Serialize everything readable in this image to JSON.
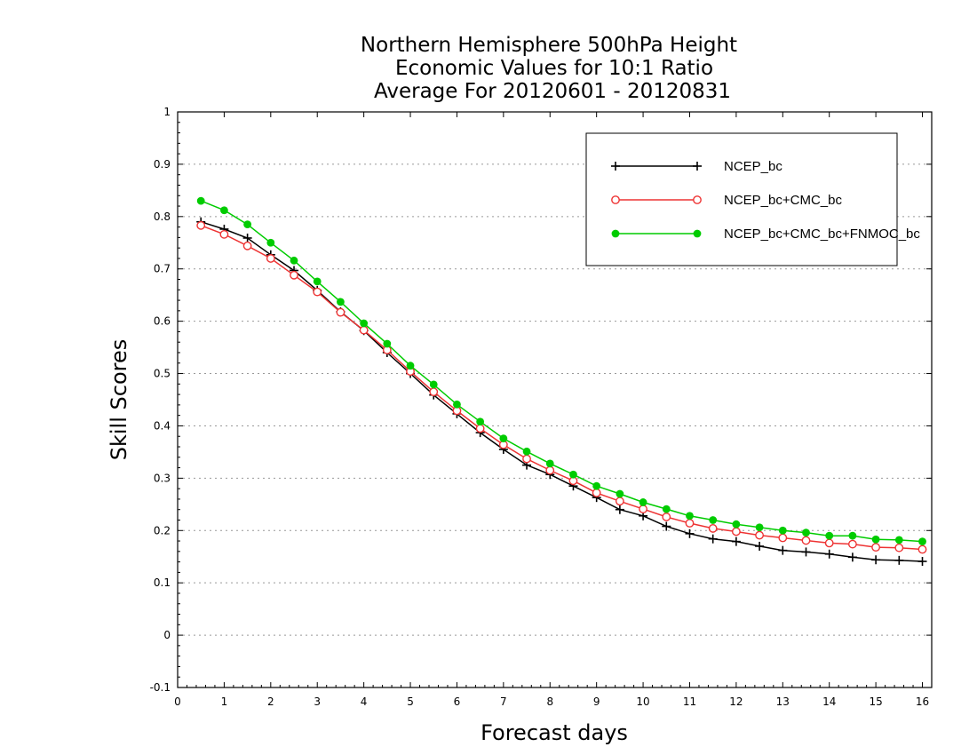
{
  "chart_data": {
    "type": "line",
    "title": [
      "Northern Hemisphere 500hPa Height",
      "Economic Values for 10:1 Ratio",
      "Average For 20120601 - 20120831"
    ],
    "xlabel": "Forecast days",
    "ylabel": "Skill Scores",
    "xlim": [
      0,
      16.2
    ],
    "ylim": [
      -0.1,
      1
    ],
    "xticks": [
      0,
      1,
      2,
      3,
      4,
      5,
      6,
      7,
      8,
      9,
      10,
      11,
      12,
      13,
      14,
      15,
      16
    ],
    "yticks": [
      -0.1,
      0,
      0.1,
      0.2,
      0.3,
      0.4,
      0.5,
      0.6,
      0.7,
      0.8,
      0.9,
      1
    ],
    "ytick_labels": [
      "-0.1",
      "0",
      "0.1",
      "0.2",
      "0.3",
      "0.4",
      "0.5",
      "0.6",
      "0.7",
      "0.8",
      "0.9",
      "1"
    ],
    "grid": "horizontal dotted",
    "legend_position": "top-right",
    "x": [
      0.5,
      1,
      1.5,
      2,
      2.5,
      3,
      3.5,
      4,
      4.5,
      5,
      5.5,
      6,
      6.5,
      7,
      7.5,
      8,
      8.5,
      9,
      9.5,
      10,
      10.5,
      11,
      11.5,
      12,
      12.5,
      13,
      13.5,
      14,
      14.5,
      15,
      15.5,
      16
    ],
    "series": [
      {
        "name": "NCEP_bc",
        "color": "#000000",
        "marker": "plus",
        "values": [
          0.79,
          0.776,
          0.759,
          0.727,
          0.697,
          0.659,
          0.618,
          0.582,
          0.54,
          0.5,
          0.459,
          0.423,
          0.387,
          0.355,
          0.325,
          0.307,
          0.285,
          0.263,
          0.24,
          0.228,
          0.208,
          0.194,
          0.184,
          0.179,
          0.17,
          0.162,
          0.159,
          0.155,
          0.149,
          0.144,
          0.143,
          0.141
        ]
      },
      {
        "name": "NCEP_bc+CMC_bc",
        "color": "#ee3333",
        "marker": "open-circle",
        "values": [
          0.783,
          0.766,
          0.744,
          0.72,
          0.688,
          0.656,
          0.617,
          0.583,
          0.545,
          0.504,
          0.465,
          0.429,
          0.395,
          0.364,
          0.337,
          0.315,
          0.295,
          0.272,
          0.256,
          0.241,
          0.226,
          0.214,
          0.204,
          0.198,
          0.191,
          0.186,
          0.181,
          0.176,
          0.174,
          0.168,
          0.167,
          0.164
        ]
      },
      {
        "name": "NCEP_bc+CMC_bc+FNMOC_bc",
        "color": "#00cc00",
        "marker": "filled-circle",
        "values": [
          0.83,
          0.812,
          0.785,
          0.75,
          0.716,
          0.676,
          0.637,
          0.596,
          0.557,
          0.515,
          0.479,
          0.441,
          0.408,
          0.376,
          0.351,
          0.328,
          0.307,
          0.285,
          0.27,
          0.254,
          0.241,
          0.228,
          0.22,
          0.212,
          0.206,
          0.2,
          0.196,
          0.19,
          0.19,
          0.183,
          0.182,
          0.179
        ]
      }
    ]
  }
}
